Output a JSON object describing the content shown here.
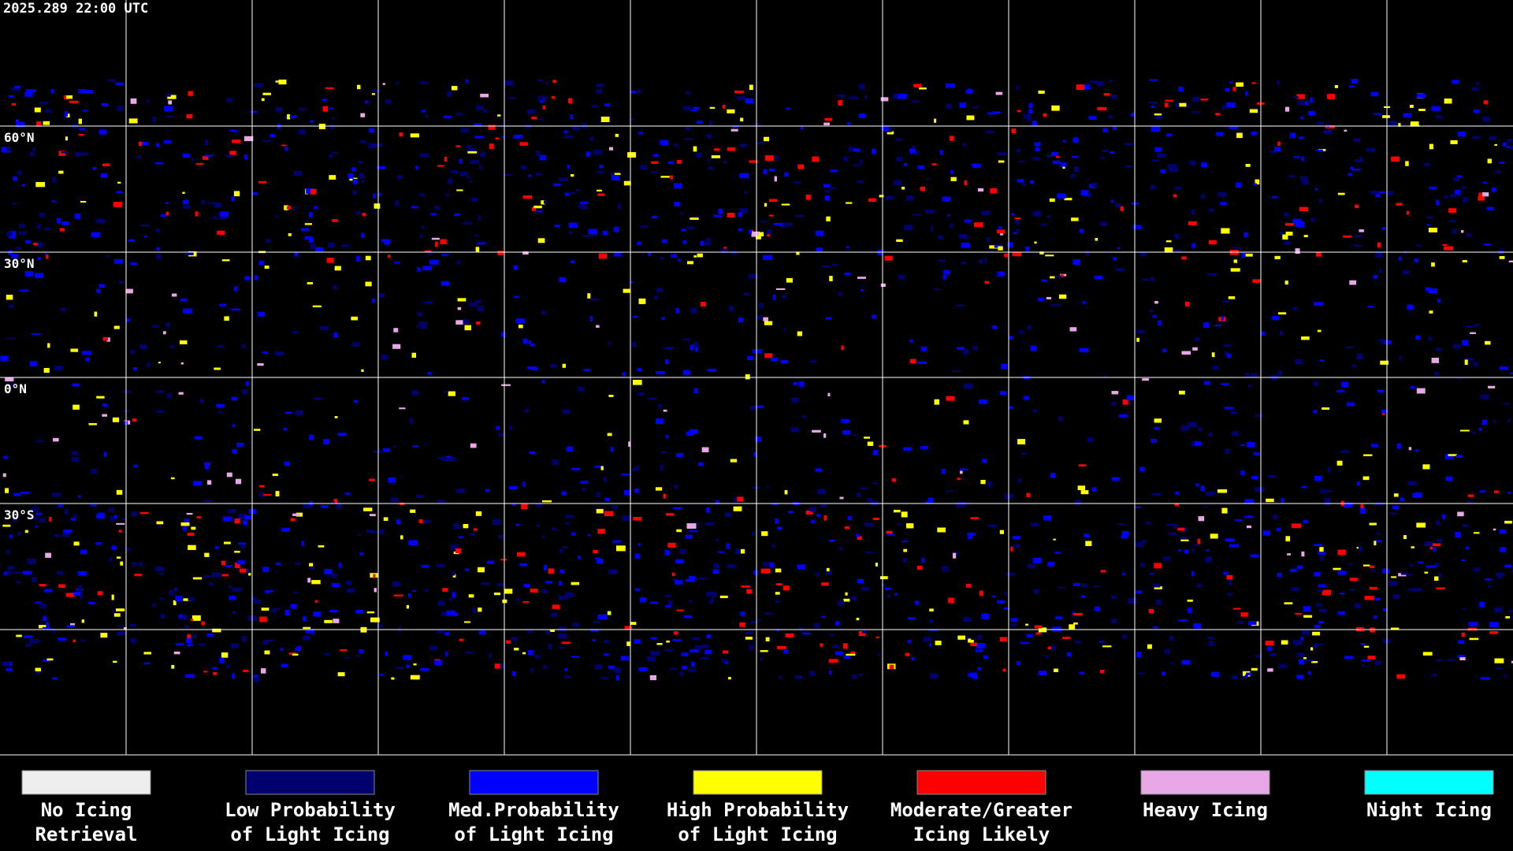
{
  "header": {
    "timestamp": "2025.289 22:00 UTC"
  },
  "map": {
    "latitude_labels": [
      "60°N",
      "30°N",
      "0°N",
      "30°S"
    ]
  },
  "legend": [
    {
      "lines": [
        "No Icing",
        "Retrieval"
      ],
      "color": "#eeeeee"
    },
    {
      "lines": [
        "Low Probability",
        "of Light Icing"
      ],
      "color": "#00006e"
    },
    {
      "lines": [
        "Med.Probability",
        "of Light Icing"
      ],
      "color": "#0000ff"
    },
    {
      "lines": [
        "High Probability",
        "of Light Icing"
      ],
      "color": "#ffff00"
    },
    {
      "lines": [
        "Moderate/Greater",
        "Icing Likely"
      ],
      "color": "#ff0000"
    },
    {
      "lines": [
        "Heavy Icing"
      ],
      "color": "#e8a8e8"
    },
    {
      "lines": [
        "Night Icing"
      ],
      "color": "#00ffff"
    }
  ]
}
